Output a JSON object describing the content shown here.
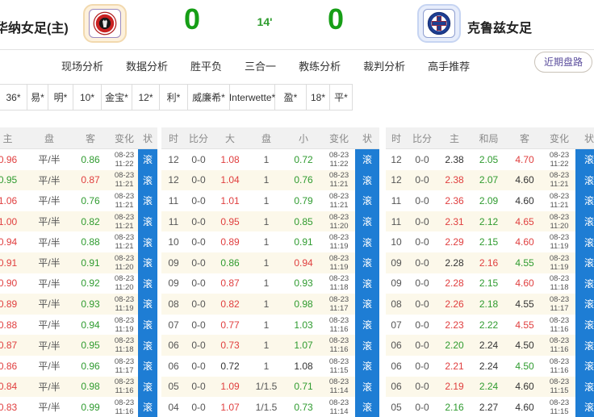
{
  "header": {
    "home_team": "华纳女足(主)",
    "away_team": "克鲁兹女足",
    "home_score": "0",
    "away_score": "0",
    "minute": "14'",
    "home_logo": "club-tijuana-crest",
    "away_logo": "cruz-azul-crest"
  },
  "tabs": [
    "现场分析",
    "数据分析",
    "胜平负",
    "三合一",
    "教练分析",
    "裁判分析",
    "高手推荐"
  ],
  "trend_button": "近期盘路",
  "bookmakers": [
    "36*",
    "易*",
    "明*",
    "10*",
    "金宝*",
    "12*",
    "利*",
    "威廉希*",
    "Interwette*",
    "盈*",
    "18*",
    "平*"
  ],
  "status_label": "滚",
  "colors": {
    "odds_up_red": "#e03e3e",
    "odds_down_green": "#2f9b2f",
    "live_badge_blue": "#1e7dd4",
    "score_green": "#169e16"
  },
  "odds_tables": [
    {
      "id": "handicap",
      "headers": [
        "主",
        "盘",
        "客",
        "变化",
        "状"
      ],
      "rows": [
        {
          "c": [
            [
              "0.96",
              "red"
            ],
            [
              "平/半",
              "mut"
            ],
            [
              "0.86",
              "green"
            ]
          ],
          "d": "08-23",
          "t": "11:22"
        },
        {
          "c": [
            [
              "0.95",
              "green"
            ],
            [
              "平/半",
              "mut"
            ],
            [
              "0.87",
              "red"
            ]
          ],
          "d": "08-23",
          "t": "11:21"
        },
        {
          "c": [
            [
              "1.06",
              "red"
            ],
            [
              "平/半",
              "mut"
            ],
            [
              "0.76",
              "green"
            ]
          ],
          "d": "08-23",
          "t": "11:21"
        },
        {
          "c": [
            [
              "1.00",
              "red"
            ],
            [
              "平/半",
              "mut"
            ],
            [
              "0.82",
              "green"
            ]
          ],
          "d": "08-23",
          "t": "11:21"
        },
        {
          "c": [
            [
              "0.94",
              "red"
            ],
            [
              "平/半",
              "mut"
            ],
            [
              "0.88",
              "green"
            ]
          ],
          "d": "08-23",
          "t": "11:21"
        },
        {
          "c": [
            [
              "0.91",
              "red"
            ],
            [
              "平/半",
              "mut"
            ],
            [
              "0.91",
              "green"
            ]
          ],
          "d": "08-23",
          "t": "11:20"
        },
        {
          "c": [
            [
              "0.90",
              "red"
            ],
            [
              "平/半",
              "mut"
            ],
            [
              "0.92",
              "green"
            ]
          ],
          "d": "08-23",
          "t": "11:20"
        },
        {
          "c": [
            [
              "0.89",
              "red"
            ],
            [
              "平/半",
              "mut"
            ],
            [
              "0.93",
              "green"
            ]
          ],
          "d": "08-23",
          "t": "11:19"
        },
        {
          "c": [
            [
              "0.88",
              "red"
            ],
            [
              "平/半",
              "mut"
            ],
            [
              "0.94",
              "green"
            ]
          ],
          "d": "08-23",
          "t": "11:19"
        },
        {
          "c": [
            [
              "0.87",
              "red"
            ],
            [
              "平/半",
              "mut"
            ],
            [
              "0.95",
              "green"
            ]
          ],
          "d": "08-23",
          "t": "11:18"
        },
        {
          "c": [
            [
              "0.86",
              "red"
            ],
            [
              "平/半",
              "mut"
            ],
            [
              "0.96",
              "green"
            ]
          ],
          "d": "08-23",
          "t": "11:17"
        },
        {
          "c": [
            [
              "0.84",
              "red"
            ],
            [
              "平/半",
              "mut"
            ],
            [
              "0.98",
              "green"
            ]
          ],
          "d": "08-23",
          "t": "11:16"
        },
        {
          "c": [
            [
              "0.83",
              "red"
            ],
            [
              "平/半",
              "mut"
            ],
            [
              "0.99",
              "green"
            ]
          ],
          "d": "08-23",
          "t": "11:16"
        }
      ]
    },
    {
      "id": "overunder",
      "headers": [
        "时",
        "比分",
        "大",
        "盘",
        "小",
        "变化",
        "状"
      ],
      "rows": [
        {
          "c": [
            [
              "12",
              "mut"
            ],
            [
              "0-0",
              "mut"
            ],
            [
              "1.08",
              "red"
            ],
            [
              "1",
              "mut"
            ],
            [
              "0.72",
              "green"
            ]
          ],
          "d": "08-23",
          "t": "11:22"
        },
        {
          "c": [
            [
              "12",
              "mut"
            ],
            [
              "0-0",
              "mut"
            ],
            [
              "1.04",
              "red"
            ],
            [
              "1",
              "mut"
            ],
            [
              "0.76",
              "green"
            ]
          ],
          "d": "08-23",
          "t": "11:21"
        },
        {
          "c": [
            [
              "11",
              "mut"
            ],
            [
              "0-0",
              "mut"
            ],
            [
              "1.01",
              "red"
            ],
            [
              "1",
              "mut"
            ],
            [
              "0.79",
              "green"
            ]
          ],
          "d": "08-23",
          "t": "11:21"
        },
        {
          "c": [
            [
              "11",
              "mut"
            ],
            [
              "0-0",
              "mut"
            ],
            [
              "0.95",
              "red"
            ],
            [
              "1",
              "mut"
            ],
            [
              "0.85",
              "green"
            ]
          ],
          "d": "08-23",
          "t": "11:20"
        },
        {
          "c": [
            [
              "10",
              "mut"
            ],
            [
              "0-0",
              "mut"
            ],
            [
              "0.89",
              "red"
            ],
            [
              "1",
              "mut"
            ],
            [
              "0.91",
              "green"
            ]
          ],
          "d": "08-23",
          "t": "11:19"
        },
        {
          "c": [
            [
              "09",
              "mut"
            ],
            [
              "0-0",
              "mut"
            ],
            [
              "0.86",
              "green"
            ],
            [
              "1",
              "mut"
            ],
            [
              "0.94",
              "red"
            ]
          ],
          "d": "08-23",
          "t": "11:19"
        },
        {
          "c": [
            [
              "09",
              "mut"
            ],
            [
              "0-0",
              "mut"
            ],
            [
              "0.87",
              "red"
            ],
            [
              "1",
              "mut"
            ],
            [
              "0.93",
              "green"
            ]
          ],
          "d": "08-23",
          "t": "11:18"
        },
        {
          "c": [
            [
              "08",
              "mut"
            ],
            [
              "0-0",
              "mut"
            ],
            [
              "0.82",
              "red"
            ],
            [
              "1",
              "mut"
            ],
            [
              "0.98",
              "green"
            ]
          ],
          "d": "08-23",
          "t": "11:17"
        },
        {
          "c": [
            [
              "07",
              "mut"
            ],
            [
              "0-0",
              "mut"
            ],
            [
              "0.77",
              "red"
            ],
            [
              "1",
              "mut"
            ],
            [
              "1.03",
              "green"
            ]
          ],
          "d": "08-23",
          "t": "11:16"
        },
        {
          "c": [
            [
              "06",
              "mut"
            ],
            [
              "0-0",
              "mut"
            ],
            [
              "0.73",
              "red"
            ],
            [
              "1",
              "mut"
            ],
            [
              "1.07",
              "green"
            ]
          ],
          "d": "08-23",
          "t": "11:16"
        },
        {
          "c": [
            [
              "06",
              "mut"
            ],
            [
              "0-0",
              "mut"
            ],
            [
              "0.72",
              "k"
            ],
            [
              "1",
              "mut"
            ],
            [
              "1.08",
              "k"
            ]
          ],
          "d": "08-23",
          "t": "11:15"
        },
        {
          "c": [
            [
              "05",
              "mut"
            ],
            [
              "0-0",
              "mut"
            ],
            [
              "1.09",
              "red"
            ],
            [
              "1/1.5",
              "mut"
            ],
            [
              "0.71",
              "green"
            ]
          ],
          "d": "08-23",
          "t": "11:14"
        },
        {
          "c": [
            [
              "04",
              "mut"
            ],
            [
              "0-0",
              "mut"
            ],
            [
              "1.07",
              "red"
            ],
            [
              "1/1.5",
              "mut"
            ],
            [
              "0.73",
              "green"
            ]
          ],
          "d": "08-23",
          "t": "11:14"
        }
      ]
    },
    {
      "id": "europe",
      "headers": [
        "时",
        "比分",
        "主",
        "和局",
        "客",
        "变化",
        "状"
      ],
      "rows": [
        {
          "c": [
            [
              "12",
              "mut"
            ],
            [
              "0-0",
              "mut"
            ],
            [
              "2.38",
              "k"
            ],
            [
              "2.05",
              "green"
            ],
            [
              "4.70",
              "red"
            ]
          ],
          "d": "08-23",
          "t": "11:22"
        },
        {
          "c": [
            [
              "12",
              "mut"
            ],
            [
              "0-0",
              "mut"
            ],
            [
              "2.38",
              "red"
            ],
            [
              "2.07",
              "green"
            ],
            [
              "4.60",
              "k"
            ]
          ],
          "d": "08-23",
          "t": "11:21"
        },
        {
          "c": [
            [
              "11",
              "mut"
            ],
            [
              "0-0",
              "mut"
            ],
            [
              "2.36",
              "red"
            ],
            [
              "2.09",
              "green"
            ],
            [
              "4.60",
              "k"
            ]
          ],
          "d": "08-23",
          "t": "11:21"
        },
        {
          "c": [
            [
              "11",
              "mut"
            ],
            [
              "0-0",
              "mut"
            ],
            [
              "2.31",
              "red"
            ],
            [
              "2.12",
              "green"
            ],
            [
              "4.65",
              "red"
            ]
          ],
          "d": "08-23",
          "t": "11:20"
        },
        {
          "c": [
            [
              "10",
              "mut"
            ],
            [
              "0-0",
              "mut"
            ],
            [
              "2.29",
              "red"
            ],
            [
              "2.15",
              "green"
            ],
            [
              "4.60",
              "red"
            ]
          ],
          "d": "08-23",
          "t": "11:19"
        },
        {
          "c": [
            [
              "09",
              "mut"
            ],
            [
              "0-0",
              "mut"
            ],
            [
              "2.28",
              "k"
            ],
            [
              "2.16",
              "red"
            ],
            [
              "4.55",
              "green"
            ]
          ],
          "d": "08-23",
          "t": "11:19"
        },
        {
          "c": [
            [
              "09",
              "mut"
            ],
            [
              "0-0",
              "mut"
            ],
            [
              "2.28",
              "red"
            ],
            [
              "2.15",
              "green"
            ],
            [
              "4.60",
              "red"
            ]
          ],
          "d": "08-23",
          "t": "11:18"
        },
        {
          "c": [
            [
              "08",
              "mut"
            ],
            [
              "0-0",
              "mut"
            ],
            [
              "2.26",
              "red"
            ],
            [
              "2.18",
              "green"
            ],
            [
              "4.55",
              "k"
            ]
          ],
          "d": "08-23",
          "t": "11:17"
        },
        {
          "c": [
            [
              "07",
              "mut"
            ],
            [
              "0-0",
              "mut"
            ],
            [
              "2.23",
              "red"
            ],
            [
              "2.22",
              "green"
            ],
            [
              "4.55",
              "red"
            ]
          ],
          "d": "08-23",
          "t": "11:16"
        },
        {
          "c": [
            [
              "06",
              "mut"
            ],
            [
              "0-0",
              "mut"
            ],
            [
              "2.20",
              "green"
            ],
            [
              "2.24",
              "k"
            ],
            [
              "4.50",
              "k"
            ]
          ],
          "d": "08-23",
          "t": "11:16"
        },
        {
          "c": [
            [
              "06",
              "mut"
            ],
            [
              "0-0",
              "mut"
            ],
            [
              "2.21",
              "red"
            ],
            [
              "2.24",
              "k"
            ],
            [
              "4.50",
              "green"
            ]
          ],
          "d": "08-23",
          "t": "11:16"
        },
        {
          "c": [
            [
              "06",
              "mut"
            ],
            [
              "0-0",
              "mut"
            ],
            [
              "2.19",
              "red"
            ],
            [
              "2.24",
              "green"
            ],
            [
              "4.60",
              "k"
            ]
          ],
          "d": "08-23",
          "t": "11:15"
        },
        {
          "c": [
            [
              "05",
              "mut"
            ],
            [
              "0-0",
              "mut"
            ],
            [
              "2.16",
              "green"
            ],
            [
              "2.27",
              "k"
            ],
            [
              "4.60",
              "k"
            ]
          ],
          "d": "08-23",
          "t": "11:15"
        }
      ]
    }
  ]
}
